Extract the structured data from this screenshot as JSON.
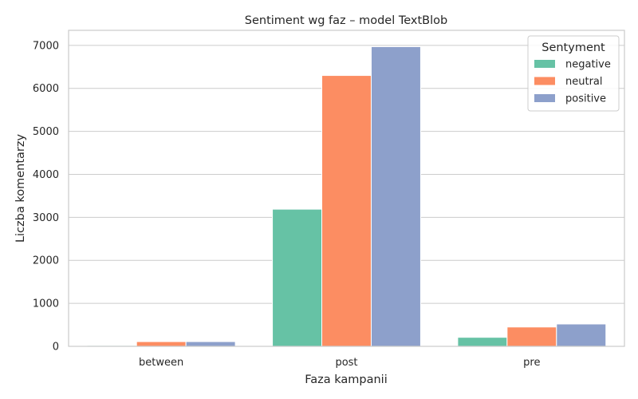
{
  "chart_data": {
    "type": "bar",
    "title": "Sentiment wg faz – model TextBlob",
    "xlabel": "Faza kampanii",
    "ylabel": "Liczba komentarzy",
    "categories": [
      "between",
      "post",
      "pre"
    ],
    "series": [
      {
        "name": "negative",
        "color": "#66c2a5",
        "values": [
          20,
          3190,
          210
        ]
      },
      {
        "name": "neutral",
        "color": "#fc8d62",
        "values": [
          110,
          6300,
          450
        ]
      },
      {
        "name": "positive",
        "color": "#8da0cb",
        "values": [
          110,
          6970,
          520
        ]
      }
    ],
    "ylim": [
      0,
      7350
    ],
    "yticks": [
      0,
      1000,
      2000,
      3000,
      4000,
      5000,
      6000,
      7000
    ],
    "grid": true,
    "legend": {
      "title": "Sentyment",
      "placement": "top-right"
    }
  }
}
